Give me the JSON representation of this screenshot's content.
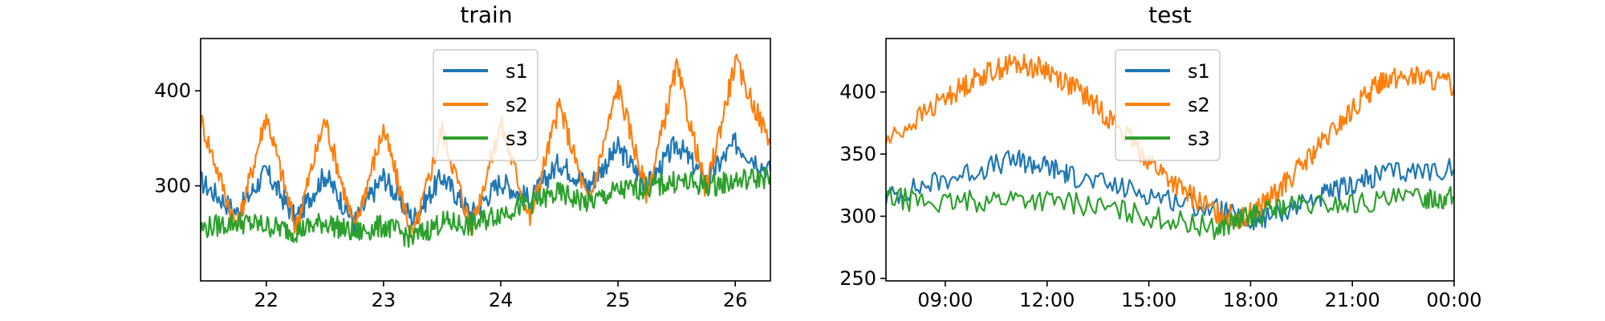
{
  "chart_data": [
    {
      "type": "line",
      "title": "train",
      "xlabel": "",
      "ylabel": "",
      "x_unit": "day",
      "xlim": [
        21.44,
        26.3
      ],
      "ylim": [
        200,
        455
      ],
      "x_ticks": [
        22,
        23,
        24,
        25,
        26
      ],
      "x_tick_labels": [
        "22",
        "23",
        "24",
        "25",
        "26"
      ],
      "y_ticks": [
        300,
        400
      ],
      "y_tick_labels": [
        "300",
        "400"
      ],
      "grid": false,
      "legend_placement": "top-center",
      "series": [
        {
          "name": "s1",
          "color": "#1f77b4",
          "x": [
            21.44,
            21.75,
            22.0,
            22.25,
            22.5,
            22.75,
            23.0,
            23.25,
            23.5,
            23.75,
            24.0,
            24.25,
            24.5,
            24.75,
            25.0,
            25.25,
            25.5,
            25.75,
            26.0,
            26.3
          ],
          "y": [
            305,
            272,
            315,
            265,
            312,
            262,
            310,
            265,
            310,
            270,
            305,
            285,
            325,
            300,
            340,
            300,
            345,
            305,
            345,
            315
          ]
        },
        {
          "name": "s2",
          "color": "#ff7f0e",
          "x": [
            21.44,
            21.75,
            22.0,
            22.25,
            22.5,
            22.75,
            23.0,
            23.25,
            23.5,
            23.75,
            24.0,
            24.25,
            24.5,
            24.75,
            25.0,
            25.25,
            25.5,
            25.75,
            26.0,
            26.3
          ],
          "y": [
            370,
            255,
            375,
            255,
            370,
            255,
            360,
            245,
            360,
            255,
            365,
            265,
            385,
            280,
            405,
            290,
            425,
            295,
            430,
            345
          ]
        },
        {
          "name": "s3",
          "color": "#2ca02c",
          "x": [
            21.44,
            21.75,
            22.0,
            22.25,
            22.5,
            22.75,
            23.0,
            23.25,
            23.5,
            23.75,
            24.0,
            24.25,
            24.5,
            24.75,
            25.0,
            25.25,
            25.5,
            25.75,
            26.0,
            26.3
          ],
          "y": [
            255,
            262,
            258,
            252,
            262,
            250,
            258,
            245,
            262,
            258,
            272,
            282,
            292,
            282,
            295,
            298,
            305,
            300,
            305,
            310
          ]
        }
      ]
    },
    {
      "type": "line",
      "title": "test",
      "xlabel": "",
      "ylabel": "",
      "x_unit": "time of day",
      "xlim": [
        "07:15",
        "00:00"
      ],
      "ylim": [
        248,
        443
      ],
      "x_ticks": [
        "09:00",
        "12:00",
        "15:00",
        "18:00",
        "21:00",
        "00:00"
      ],
      "x_tick_labels": [
        "09:00",
        "12:00",
        "15:00",
        "18:00",
        "21:00",
        "00:00"
      ],
      "y_ticks": [
        250,
        300,
        350,
        400
      ],
      "y_tick_labels": [
        "250",
        "300",
        "350",
        "400"
      ],
      "grid": false,
      "legend_placement": "top-center",
      "series": [
        {
          "name": "s1",
          "color": "#1f77b4",
          "x": [
            "07:15",
            "09:00",
            "11:00",
            "12:00",
            "13:00",
            "15:00",
            "17:00",
            "18:00",
            "18:30",
            "20:00",
            "21:00",
            "22:00",
            "00:00"
          ],
          "y": [
            315,
            330,
            345,
            340,
            330,
            318,
            305,
            295,
            300,
            315,
            325,
            335,
            338
          ]
        },
        {
          "name": "s2",
          "color": "#ff7f0e",
          "x": [
            "07:15",
            "09:00",
            "10:00",
            "11:00",
            "12:00",
            "13:00",
            "14:00",
            "15:00",
            "16:00",
            "17:00",
            "17:45",
            "18:30",
            "19:30",
            "20:30",
            "21:30",
            "22:00",
            "23:00",
            "00:00"
          ],
          "y": [
            360,
            395,
            413,
            423,
            418,
            400,
            375,
            345,
            320,
            303,
            298,
            312,
            340,
            370,
            400,
            412,
            412,
            405
          ]
        },
        {
          "name": "s3",
          "color": "#2ca02c",
          "x": [
            "07:15",
            "09:00",
            "11:00",
            "13:00",
            "15:00",
            "17:00",
            "18:00",
            "19:00",
            "21:00",
            "23:00",
            "00:00"
          ],
          "y": [
            315,
            310,
            315,
            310,
            300,
            290,
            300,
            308,
            310,
            315,
            315
          ]
        }
      ]
    }
  ]
}
